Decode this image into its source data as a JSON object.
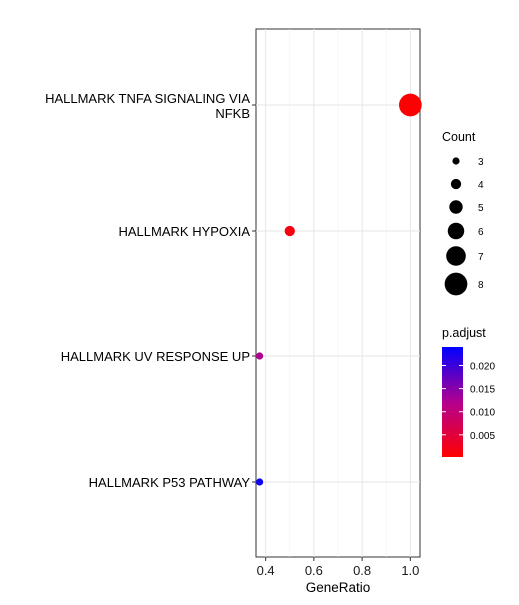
{
  "chart_data": {
    "type": "scatter",
    "xlabel": "GeneRatio",
    "ylabel": "",
    "xlim": [
      0.36,
      1.04
    ],
    "xticks": [
      0.4,
      0.6,
      0.8,
      1.0
    ],
    "xtick_labels": [
      "0.4",
      "0.6",
      "0.8",
      "1.0"
    ],
    "grid": true,
    "categories": [
      {
        "line1": "HALLMARK TNFA SIGNALING VIA",
        "line2": "NFKB"
      },
      {
        "line1": "HALLMARK HYPOXIA",
        "line2": ""
      },
      {
        "line1": "HALLMARK UV RESPONSE UP",
        "line2": ""
      },
      {
        "line1": "HALLMARK P53 PATHWAY",
        "line2": ""
      }
    ],
    "points": [
      {
        "category": "HALLMARK TNFA SIGNALING VIA NFKB",
        "gene_ratio": 1.0,
        "count": 8,
        "p_adjust": 0.0005
      },
      {
        "category": "HALLMARK HYPOXIA",
        "gene_ratio": 0.5,
        "count": 4,
        "p_adjust": 0.0015
      },
      {
        "category": "HALLMARK UV RESPONSE UP",
        "gene_ratio": 0.375,
        "count": 3,
        "p_adjust": 0.012
      },
      {
        "category": "HALLMARK P53 PATHWAY",
        "gene_ratio": 0.375,
        "count": 3,
        "p_adjust": 0.023
      }
    ],
    "legend_size": {
      "title": "Count",
      "entries": [
        "3",
        "4",
        "5",
        "6",
        "7",
        "8"
      ],
      "values": [
        3,
        4,
        5,
        6,
        7,
        8
      ]
    },
    "legend_color": {
      "title": "p.adjust",
      "labels": [
        "0.020",
        "0.015",
        "0.010",
        "0.005"
      ],
      "values": [
        0.02,
        0.015,
        0.01,
        0.005
      ],
      "range": [
        0.0002,
        0.024
      ],
      "low_color": "#ff0000",
      "high_color": "#0000ff"
    },
    "legend_placement": "right"
  }
}
